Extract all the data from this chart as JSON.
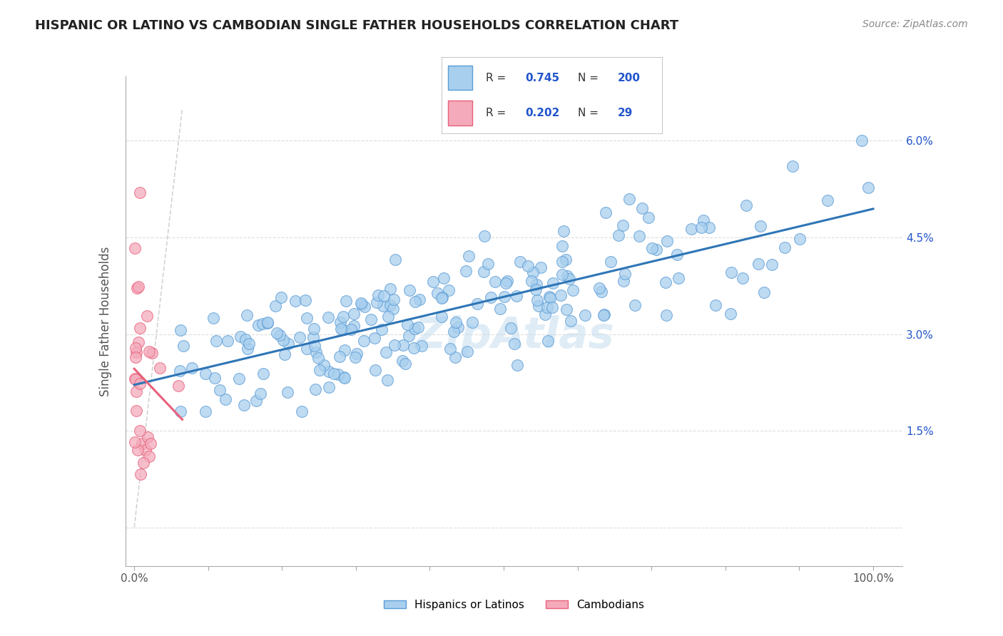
{
  "title": "HISPANIC OR LATINO VS CAMBODIAN SINGLE FATHER HOUSEHOLDS CORRELATION CHART",
  "source": "Source: ZipAtlas.com",
  "ylabel": "Single Father Households",
  "r_hispanic": 0.745,
  "n_hispanic": 200,
  "r_cambodian": 0.202,
  "n_cambodian": 29,
  "color_hispanic": "#A8CFEE",
  "color_hispanic_edge": "#5B9BD5",
  "color_hispanic_line": "#2E75B6",
  "color_cambodian": "#F4AABB",
  "color_cambodian_edge": "#E8607A",
  "color_cambodian_line": "#E8607A",
  "color_diag": "#C8C8C8",
  "color_legend_text": "#2255CC",
  "color_right_axis": "#2255CC",
  "background_color": "#FFFFFF",
  "watermark": "ZipAtlas"
}
